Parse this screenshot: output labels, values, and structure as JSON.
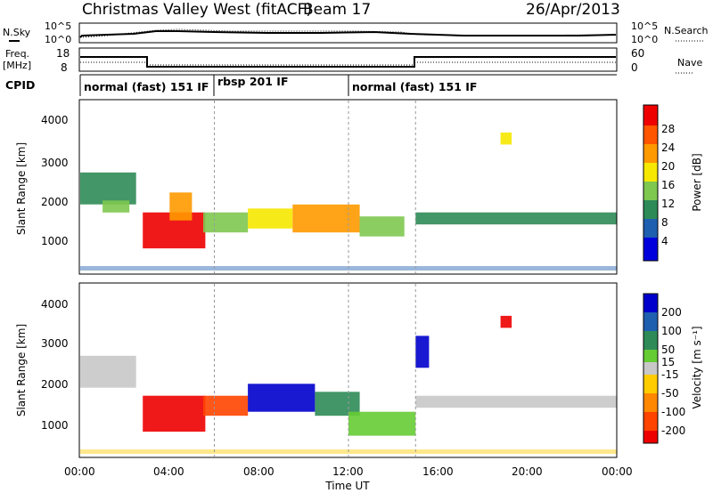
{
  "header": {
    "title": "Christmas Valley West (fitACF)",
    "beam": "Beam 17",
    "date": "26/Apr/2013"
  },
  "side_labels": {
    "nsky": "N.Sky",
    "nsky_ticks": [
      "10^5",
      "10^0"
    ],
    "nsearch": "N.Search",
    "nsearch_ticks": [
      "10^5",
      "10^0"
    ],
    "freq_line1": "Freq.",
    "freq_line2": "[MHz]",
    "freq_ticks": [
      "18",
      "8"
    ],
    "nave": "Nave",
    "nave_ticks": [
      "60",
      "0"
    ],
    "cpid": "CPID"
  },
  "modes": [
    {
      "label": "normal (fast) 151 IF",
      "start_hour": 0,
      "end_hour": 6
    },
    {
      "label": "rbsp 201 IF",
      "start_hour": 6,
      "end_hour": 12
    },
    {
      "label": "normal (fast) 151 IF",
      "start_hour": 12,
      "end_hour": 24
    }
  ],
  "x_axis": {
    "label": "Time UT",
    "ticks": [
      "00:00",
      "04:00",
      "08:00",
      "12:00",
      "16:00",
      "20:00",
      "00:00"
    ]
  },
  "power_panel": {
    "ylabel": "Slant Range [km]",
    "yticks": [
      "4000",
      "3000",
      "2000",
      "1000"
    ],
    "colorbar_label": "Power [dB]",
    "colorbar_ticks": [
      "28",
      "24",
      "20",
      "16",
      "12",
      "8",
      "4"
    ],
    "colors": [
      "#0000dd",
      "#1f5fb0",
      "#2e8b57",
      "#7ec850",
      "#f6e800",
      "#ff9900",
      "#ff5500",
      "#ee0000"
    ]
  },
  "velocity_panel": {
    "ylabel": "Slant Range [km]",
    "yticks": [
      "4000",
      "3000",
      "2000",
      "1000"
    ],
    "colorbar_label": "Velocity [m s⁻¹]",
    "colorbar_ticks": [
      "200",
      "100",
      "50",
      "15",
      "-15",
      "-50",
      "-100",
      "-200"
    ],
    "colors": [
      "#0000cc",
      "#1f5fb0",
      "#2e8b57",
      "#66cc33",
      "#c8c8c8",
      "#ffcc00",
      "#ff8800",
      "#ff4400",
      "#ee0000"
    ]
  },
  "chart_data": {
    "type": "heatmap",
    "title": "Christmas Valley West (fitACF)",
    "xlabel": "Time UT",
    "ylabel": "Slant Range [km]",
    "xlim": [
      0,
      24
    ],
    "ylim": [
      180,
      4500
    ],
    "series": [
      {
        "name": "Power [dB]",
        "bands": [
          {
            "t0": 0.0,
            "t1": 2.5,
            "r0": 1900,
            "r1": 2700,
            "value": 8
          },
          {
            "t0": 1.0,
            "t1": 2.2,
            "r0": 1700,
            "r1": 2000,
            "value": 12
          },
          {
            "t0": 2.8,
            "t1": 5.6,
            "r0": 800,
            "r1": 1700,
            "value": 28
          },
          {
            "t0": 4.0,
            "t1": 5.0,
            "r0": 1500,
            "r1": 2200,
            "value": 20
          },
          {
            "t0": 5.5,
            "t1": 7.5,
            "r0": 1200,
            "r1": 1700,
            "value": 12
          },
          {
            "t0": 7.5,
            "t1": 9.5,
            "r0": 1300,
            "r1": 1800,
            "value": 16
          },
          {
            "t0": 9.5,
            "t1": 12.5,
            "r0": 1200,
            "r1": 1900,
            "value": 20
          },
          {
            "t0": 12.5,
            "t1": 14.5,
            "r0": 1100,
            "r1": 1600,
            "value": 12
          },
          {
            "t0": 15.0,
            "t1": 24.0,
            "r0": 1400,
            "r1": 1700,
            "value": 8
          },
          {
            "t0": 18.8,
            "t1": 19.3,
            "r0": 3400,
            "r1": 3700,
            "value": 16
          }
        ]
      },
      {
        "name": "Velocity [m s-1]",
        "bands": [
          {
            "t0": 0.0,
            "t1": 2.5,
            "r0": 1900,
            "r1": 2700,
            "value": 0
          },
          {
            "t0": 2.8,
            "t1": 5.6,
            "r0": 800,
            "r1": 1700,
            "value": -200
          },
          {
            "t0": 5.5,
            "t1": 7.5,
            "r0": 1200,
            "r1": 1700,
            "value": -100
          },
          {
            "t0": 7.5,
            "t1": 10.5,
            "r0": 1300,
            "r1": 2000,
            "value": 200
          },
          {
            "t0": 10.5,
            "t1": 12.5,
            "r0": 1200,
            "r1": 1800,
            "value": 50
          },
          {
            "t0": 12.0,
            "t1": 15.0,
            "r0": 700,
            "r1": 1300,
            "value": 15
          },
          {
            "t0": 15.0,
            "t1": 24.0,
            "r0": 1400,
            "r1": 1700,
            "value": 0
          },
          {
            "t0": 15.0,
            "t1": 15.6,
            "r0": 2400,
            "r1": 3200,
            "value": 200
          },
          {
            "t0": 18.8,
            "t1": 19.3,
            "r0": 3400,
            "r1": 3700,
            "value": -200
          }
        ]
      }
    ]
  }
}
